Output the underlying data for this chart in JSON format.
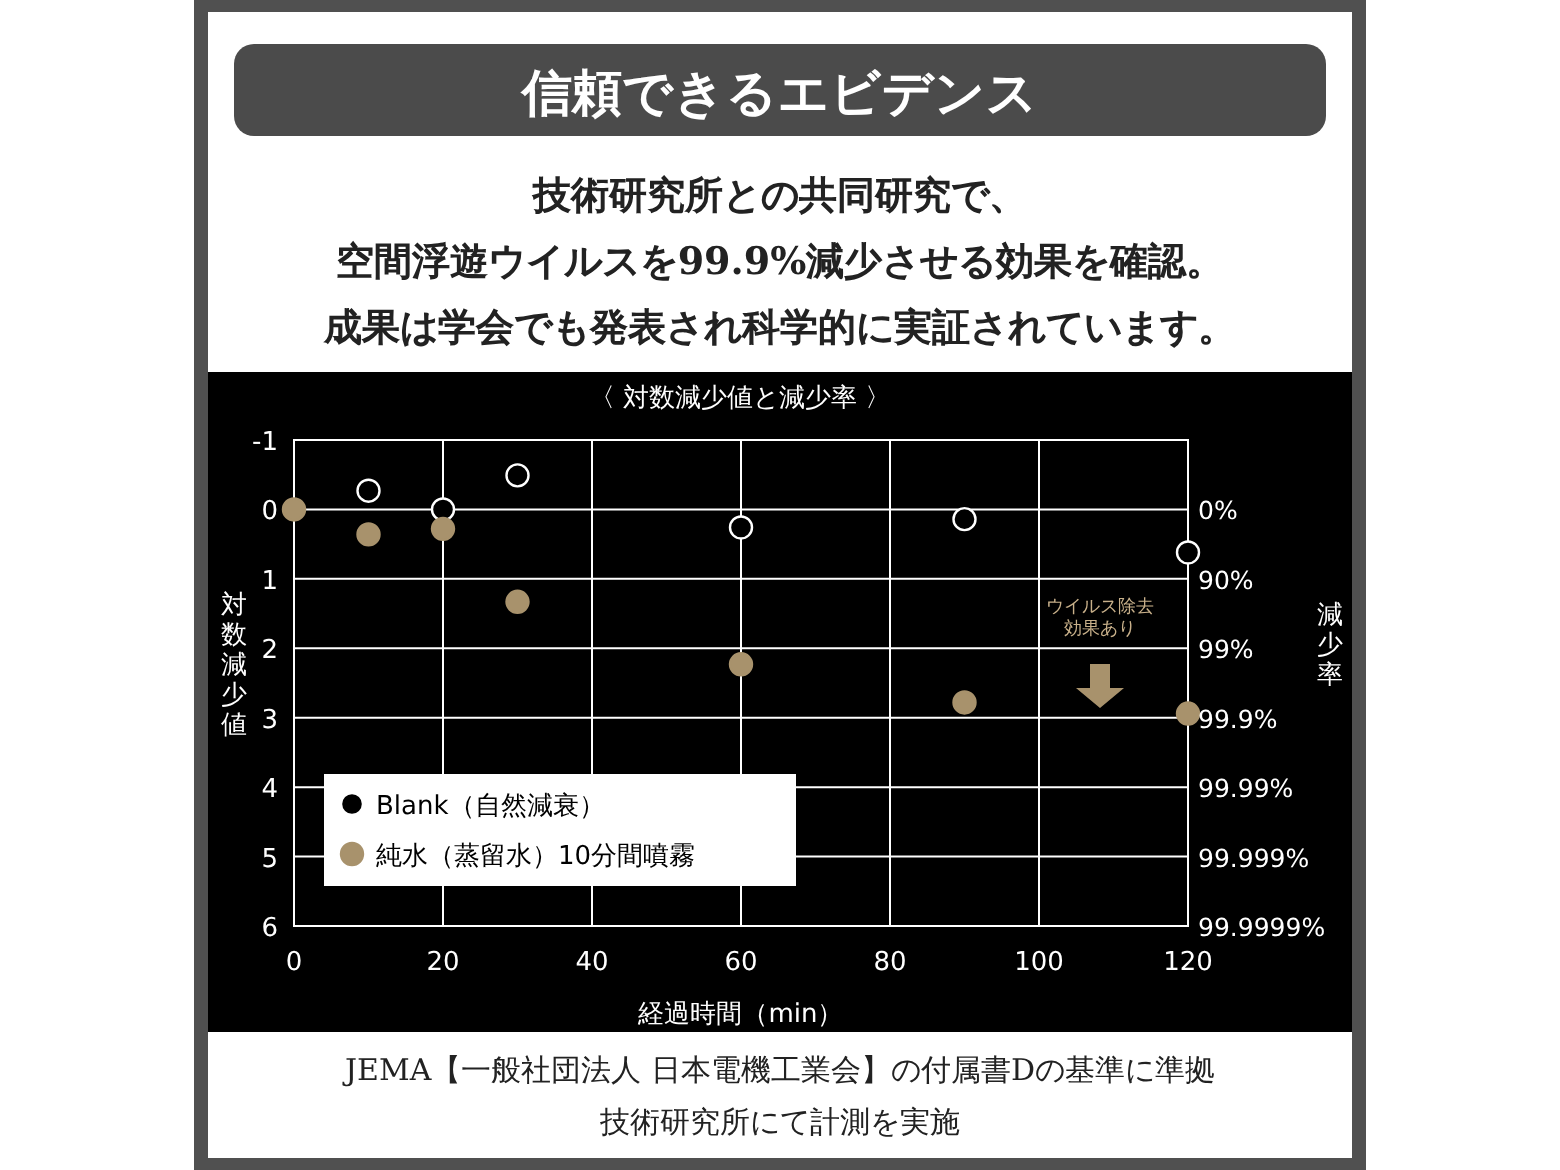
{
  "chart_data": {
    "type": "scatter",
    "title": "信頼できるエビデンス",
    "subtitle": "技術研究所との共同研究で、空間浮遊ウイルスを99.9%減少させる効果を確認。成果は学会でも発表され科学的に実証されています。",
    "xlabel": "経過時間（min）",
    "ylabel": "対数減少値",
    "y2label": "減少率",
    "xlim": [
      0,
      120
    ],
    "xticks": [
      0,
      20,
      40,
      60,
      80,
      100,
      120
    ],
    "ylim": [
      6,
      -1
    ],
    "yticks": [
      -1,
      0,
      1,
      2,
      3,
      4,
      5,
      6
    ],
    "grid": true,
    "legend": "bottom left",
    "marker": "circle",
    "series": [
      {
        "name": "Blank（自然減衰）",
        "color": "#ffffff",
        "x": [
          10,
          20,
          30,
          60,
          90,
          120
        ],
        "values": [
          -0.27,
          0,
          -0.49,
          0.26,
          0.14,
          0.62
        ]
      },
      {
        "name": "純水（蒸留水）10分間噴霧",
        "color": "#a8926c",
        "x": [
          0,
          10,
          20,
          30,
          60,
          90,
          120
        ],
        "values": [
          0,
          0.36,
          0.28,
          1.33,
          2.23,
          2.78,
          2.94
        ]
      }
    ],
    "annotations": [
      "ウイルス除去効果あり",
      "〈 対数減少値と減少率 〉",
      "JEMA【一般社団法人 日本電機工業会】の付属書Dの基準に準拠",
      "技術研究所にて計測を実施",
      "0%",
      "90%",
      "99%",
      "99.9%",
      "99.99%",
      "99.999%",
      "99.9999%"
    ]
  }
}
